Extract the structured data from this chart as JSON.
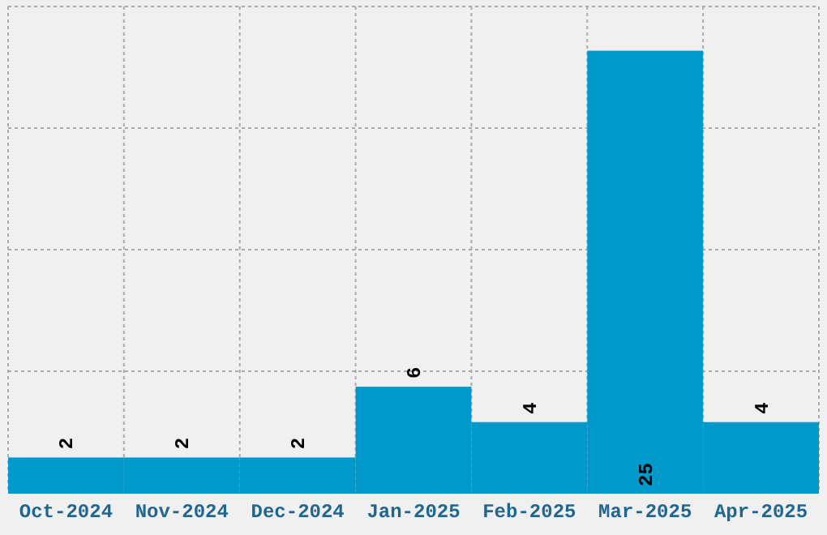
{
  "chart_data": {
    "type": "bar",
    "categories": [
      "Oct-2024",
      "Nov-2024",
      "Dec-2024",
      "Jan-2025",
      "Feb-2025",
      "Mar-2025",
      "Apr-2025"
    ],
    "values": [
      2,
      2,
      2,
      6,
      4,
      25,
      4
    ],
    "color": "#0099cc",
    "data_labels": true,
    "ylim": [
      0,
      27.5
    ],
    "yticks": [
      {
        "value": 0,
        "label": null
      },
      {
        "value": 6.875,
        "label": null
      },
      {
        "value": 13.75,
        "label": null
      },
      {
        "value": 20.625,
        "label": null
      },
      {
        "value": 27.5,
        "label": null
      }
    ],
    "grid": true,
    "tick_labels": "x"
  }
}
